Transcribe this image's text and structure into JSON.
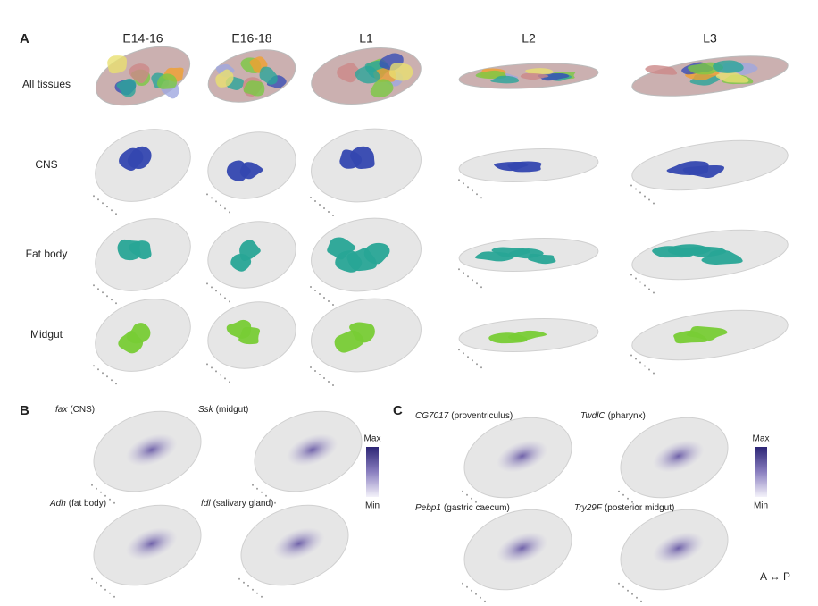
{
  "panel_a": {
    "label": "A",
    "columns": [
      "E14-16",
      "E16-18",
      "L1",
      "L2",
      "L3"
    ],
    "rows": [
      "All tissues",
      "CNS",
      "Fat body",
      "Midgut"
    ]
  },
  "panel_b": {
    "label": "B",
    "genes": [
      {
        "gene": "fax",
        "tissue": "(CNS)"
      },
      {
        "gene": "Ssk",
        "tissue": "(midgut)"
      },
      {
        "gene": "Adh",
        "tissue": "(fat body)"
      },
      {
        "gene": "fdl",
        "tissue": "(salivary gland)"
      }
    ],
    "colorbar": {
      "max": "Max",
      "min": "Min"
    }
  },
  "panel_c": {
    "label": "C",
    "genes": [
      {
        "gene": "CG7017",
        "tissue": "(proventriculus)"
      },
      {
        "gene": "TwdlC",
        "tissue": "(pharynx)"
      },
      {
        "gene": "Pebp1",
        "tissue": "(gastric caecum)"
      },
      {
        "gene": "Try29F",
        "tissue": "(posterior midgut)"
      }
    ],
    "colorbar": {
      "max": "Max",
      "min": "Min"
    }
  },
  "axis_note": "A ↔ P"
}
